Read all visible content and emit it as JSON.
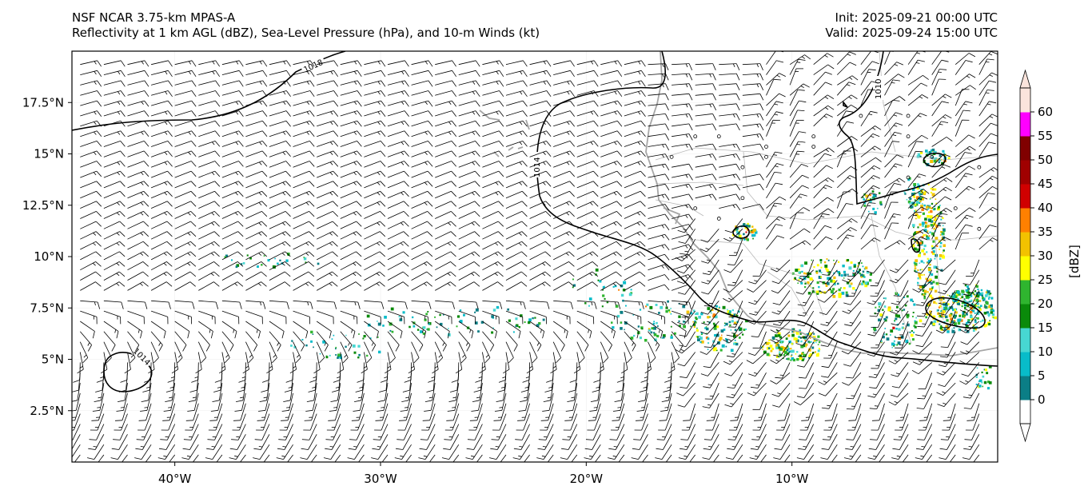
{
  "title": {
    "left_line1": "NSF NCAR 3.75-km MPAS-A",
    "left_line2": "Reflectivity at 1 km AGL (dBZ), Sea-Level Pressure (hPa), and 10-m Winds (kt)",
    "right_line1": "Init: 2025-09-21 00:00 UTC",
    "right_line2": "Valid: 2025-09-24 15:00 UTC"
  },
  "map": {
    "lon_range": [
      -45,
      0
    ],
    "lat_range": [
      0,
      20
    ],
    "x_ticks": [
      "40°W",
      "30°W",
      "20°W",
      "10°W"
    ],
    "x_tick_values": [
      -40,
      -30,
      -20,
      -10
    ],
    "y_ticks": [
      "2.5°N",
      "5°N",
      "7.5°N",
      "10°N",
      "12.5°N",
      "15°N",
      "17.5°N"
    ],
    "y_tick_values": [
      2.5,
      5,
      7.5,
      10,
      12.5,
      15,
      17.5
    ]
  },
  "contours": {
    "labels": [
      "1018",
      "1014",
      "1010",
      "1014"
    ]
  },
  "colorbar": {
    "label": "[dBZ]",
    "ticks": [
      "0",
      "5",
      "10",
      "15",
      "20",
      "25",
      "30",
      "35",
      "40",
      "45",
      "50",
      "55",
      "60"
    ],
    "colors": [
      "#ffffff",
      "#0b7e86",
      "#08bcc9",
      "#47d7d2",
      "#0a8a0a",
      "#2fb52f",
      "#ffff00",
      "#f2c200",
      "#ff8000",
      "#d00000",
      "#a00000",
      "#800000",
      "#ff00ff",
      "#fbe4dc"
    ]
  },
  "colors": {
    "slp_contour": "#000000",
    "coastline": "#a0a0a0",
    "border": "#b0b0b0",
    "barb": "#000000"
  }
}
